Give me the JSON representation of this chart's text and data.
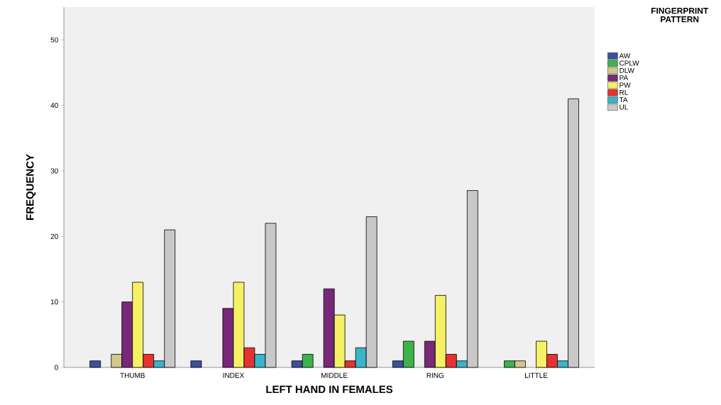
{
  "chart_data": {
    "type": "bar",
    "xlabel": "LEFT HAND IN FEMALES",
    "ylabel": "FREQUENCY",
    "legend_title": "FINGERPRINT PATTERN",
    "categories": [
      "THUMB",
      "INDEX",
      "MIDDLE",
      "RING",
      "LITTLE"
    ],
    "series": [
      {
        "name": "AW",
        "color": "#3c50a0",
        "values": [
          1,
          1,
          1,
          1,
          null
        ]
      },
      {
        "name": "CPLW",
        "color": "#3cb44b",
        "values": [
          null,
          null,
          2,
          4,
          1
        ]
      },
      {
        "name": "DLW",
        "color": "#d2c88c",
        "values": [
          2,
          null,
          null,
          null,
          1
        ]
      },
      {
        "name": "PA",
        "color": "#782878",
        "values": [
          10,
          9,
          12,
          4,
          null
        ]
      },
      {
        "name": "PW",
        "color": "#f5f064",
        "values": [
          13,
          13,
          8,
          11,
          4
        ]
      },
      {
        "name": "RL",
        "color": "#e63232",
        "values": [
          2,
          3,
          1,
          2,
          2
        ]
      },
      {
        "name": "TA",
        "color": "#3cb4c8",
        "values": [
          1,
          2,
          3,
          1,
          1
        ]
      },
      {
        "name": "UL",
        "color": "#c8c8c8",
        "values": [
          21,
          22,
          23,
          27,
          41
        ]
      }
    ],
    "ylim": [
      0,
      55
    ],
    "yticks": [
      0,
      10,
      20,
      30,
      40,
      50
    ],
    "legend": "right"
  }
}
